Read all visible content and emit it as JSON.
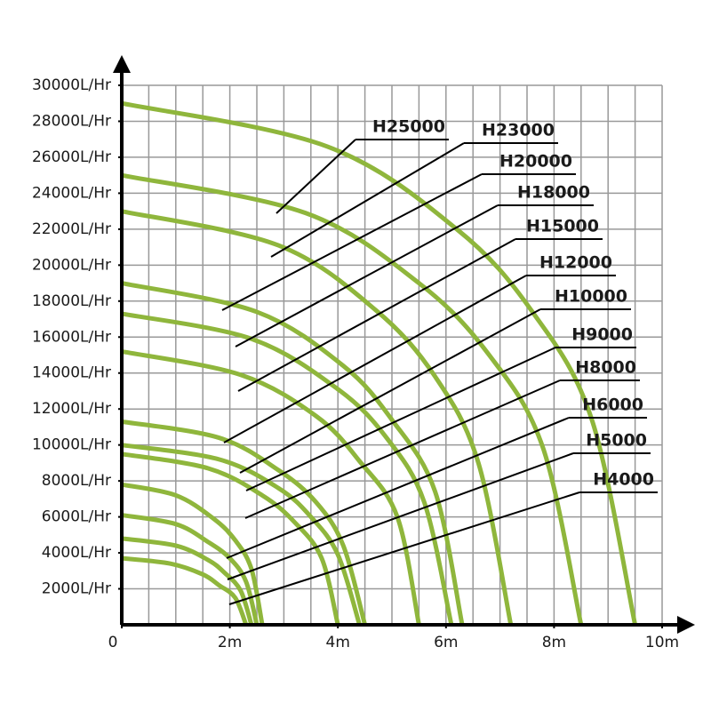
{
  "chart_data": {
    "type": "line",
    "xlim": [
      0,
      10
    ],
    "ylim": [
      0,
      30000
    ],
    "xticks": [
      0,
      {
        "value": 2,
        "label": "2m"
      },
      {
        "value": 4,
        "label": "4m"
      },
      {
        "value": 6,
        "label": "6m"
      },
      {
        "value": 8,
        "label": "8m"
      },
      {
        "value": 10,
        "label": "10m"
      }
    ],
    "yticks": [
      {
        "value": 2000,
        "label": "2000L/Hr"
      },
      {
        "value": 4000,
        "label": "4000L/Hr"
      },
      {
        "value": 6000,
        "label": "6000L/Hr"
      },
      {
        "value": 8000,
        "label": "8000L/Hr"
      },
      {
        "value": 10000,
        "label": "10000L/Hr"
      },
      {
        "value": 12000,
        "label": "12000L/Hr"
      },
      {
        "value": 14000,
        "label": "14000L/Hr"
      },
      {
        "value": 16000,
        "label": "16000L/Hr"
      },
      {
        "value": 18000,
        "label": "18000L/Hr"
      },
      {
        "value": 20000,
        "label": "20000L/Hr"
      },
      {
        "value": 22000,
        "label": "22000L/Hr"
      },
      {
        "value": 24000,
        "label": "24000L/Hr"
      },
      {
        "value": 26000,
        "label": "26000L/Hr"
      },
      {
        "value": 28000,
        "label": "28000L/Hr"
      },
      {
        "value": 30000,
        "label": "30000L/Hr"
      }
    ],
    "grid": true,
    "x_minor_step": 0.5,
    "y_minor_step": 2000,
    "grid_color": "#999999",
    "series": [
      {
        "color": "#8fb63c",
        "x": [
          0,
          3.8,
          6.2,
          7.6,
          8.7,
          9.5
        ],
        "values": [
          29000,
          26600,
          22000,
          17400,
          11400,
          0
        ]
      },
      {
        "name": "H25000",
        "color": "#8fb63c",
        "x": [
          0,
          3.4,
          5.5,
          6.8,
          7.8,
          8.5
        ],
        "values": [
          25000,
          22900,
          19000,
          15000,
          9800,
          0
        ]
      },
      {
        "name": "H23000",
        "color": "#8fb63c",
        "x": [
          0,
          2.9,
          4.7,
          5.8,
          6.6,
          7.2
        ],
        "values": [
          23000,
          21100,
          17500,
          13800,
          9000,
          0
        ]
      },
      {
        "name": "H20000",
        "color": "#8fb63c",
        "x": [
          0,
          2.5,
          4.1,
          5.0,
          5.8,
          6.3
        ],
        "values": [
          19000,
          17400,
          14400,
          11400,
          7400,
          0
        ]
      },
      {
        "name": "H18000",
        "color": "#8fb63c",
        "x": [
          0,
          2.4,
          4.0,
          4.9,
          5.6,
          6.1
        ],
        "values": [
          17300,
          15900,
          13100,
          10400,
          6800,
          0
        ]
      },
      {
        "name": "H15000",
        "color": "#8fb63c",
        "x": [
          0,
          2.2,
          3.6,
          4.4,
          5.1,
          5.5
        ],
        "values": [
          15200,
          13900,
          11600,
          9100,
          6000,
          0
        ]
      },
      {
        "name": "H12000",
        "color": "#8fb63c",
        "x": [
          0,
          1.8,
          2.9,
          3.6,
          4.1,
          4.5
        ],
        "values": [
          11300,
          10400,
          8600,
          6800,
          4400,
          0
        ]
      },
      {
        "name": "H10000",
        "color": "#8fb63c",
        "x": [
          0,
          1.8,
          2.9,
          3.5,
          4.0,
          4.4
        ],
        "values": [
          10000,
          9200,
          7600,
          6000,
          3900,
          0
        ]
      },
      {
        "name": "H9000",
        "color": "#8fb63c",
        "x": [
          0,
          1.6,
          2.6,
          3.2,
          3.7,
          4.0
        ],
        "values": [
          9500,
          8700,
          7200,
          5700,
          3700,
          0
        ]
      },
      {
        "name": "H8000",
        "color": "#8fb63c",
        "x": [
          0,
          1.0,
          1.7,
          2.1,
          2.4,
          2.6
        ],
        "values": [
          7800,
          7200,
          5900,
          4700,
          3100,
          0
        ]
      },
      {
        "name": "H6000",
        "color": "#8fb63c",
        "x": [
          0,
          1.0,
          1.6,
          2.0,
          2.3,
          2.5
        ],
        "values": [
          6100,
          5600,
          4600,
          3700,
          2400,
          0
        ]
      },
      {
        "name": "H5000",
        "color": "#8fb63c",
        "x": [
          0,
          1.0,
          1.6,
          1.9,
          2.2,
          2.4
        ],
        "values": [
          4800,
          4400,
          3600,
          2900,
          1900,
          0
        ]
      },
      {
        "name": "H4000",
        "color": "#8fb63c",
        "x": [
          0,
          0.9,
          1.5,
          1.8,
          2.1,
          2.3
        ],
        "values": [
          3700,
          3400,
          2800,
          2200,
          1500,
          0
        ]
      }
    ]
  }
}
